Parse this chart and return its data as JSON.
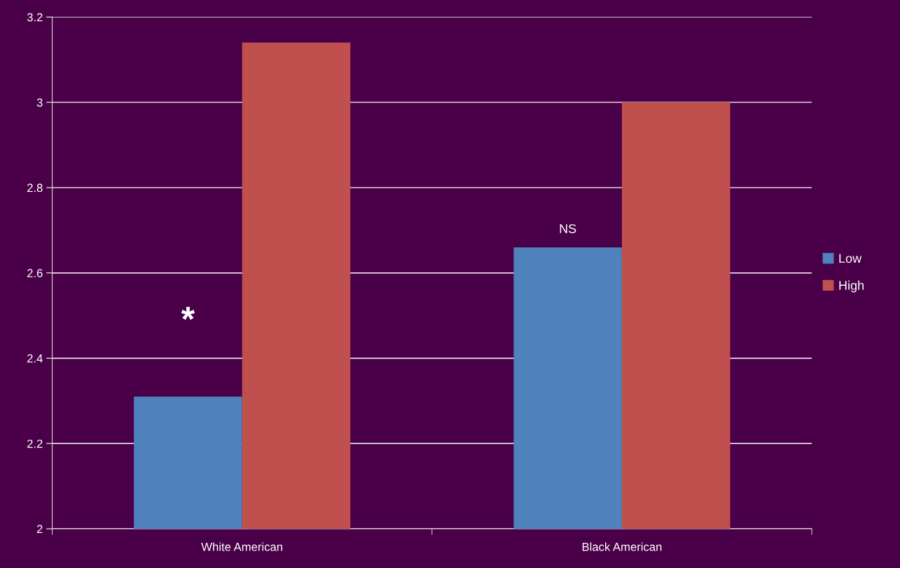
{
  "chart_data": {
    "type": "bar",
    "categories": [
      "White American",
      "Black American"
    ],
    "series": [
      {
        "name": "Low",
        "color": "#4f81bd",
        "values": [
          2.31,
          2.66
        ]
      },
      {
        "name": "High",
        "color": "#c0504d",
        "values": [
          3.14,
          3.0
        ]
      }
    ],
    "ylim": [
      2,
      3.2
    ],
    "yticks": [
      2,
      2.2,
      2.4,
      2.6,
      2.8,
      3,
      3.2
    ],
    "grid": "y",
    "legend": "right",
    "annotations": [
      "*",
      "NS"
    ]
  }
}
